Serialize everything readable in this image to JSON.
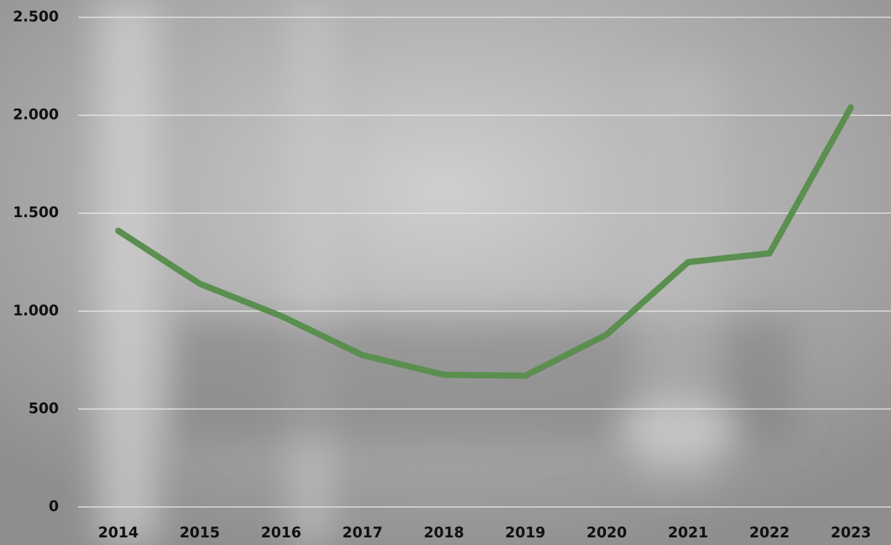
{
  "chart_data": {
    "type": "line",
    "categories": [
      "2014",
      "2015",
      "2016",
      "2017",
      "2018",
      "2019",
      "2020",
      "2021",
      "2022",
      "2023"
    ],
    "series": [
      {
        "color": "#5a8f50",
        "values": [
          1410,
          1140,
          975,
          775,
          675,
          670,
          880,
          1250,
          1295,
          2040
        ]
      }
    ],
    "ylim": [
      0,
      2500
    ],
    "yticks": [
      0,
      500,
      {
        "value": 1000,
        "label": "1.000"
      },
      {
        "value": 1500,
        "label": "1.500"
      },
      {
        "value": 2000,
        "label": "2.000"
      },
      {
        "value": 2500,
        "label": "2.500"
      }
    ],
    "grid": true
  }
}
